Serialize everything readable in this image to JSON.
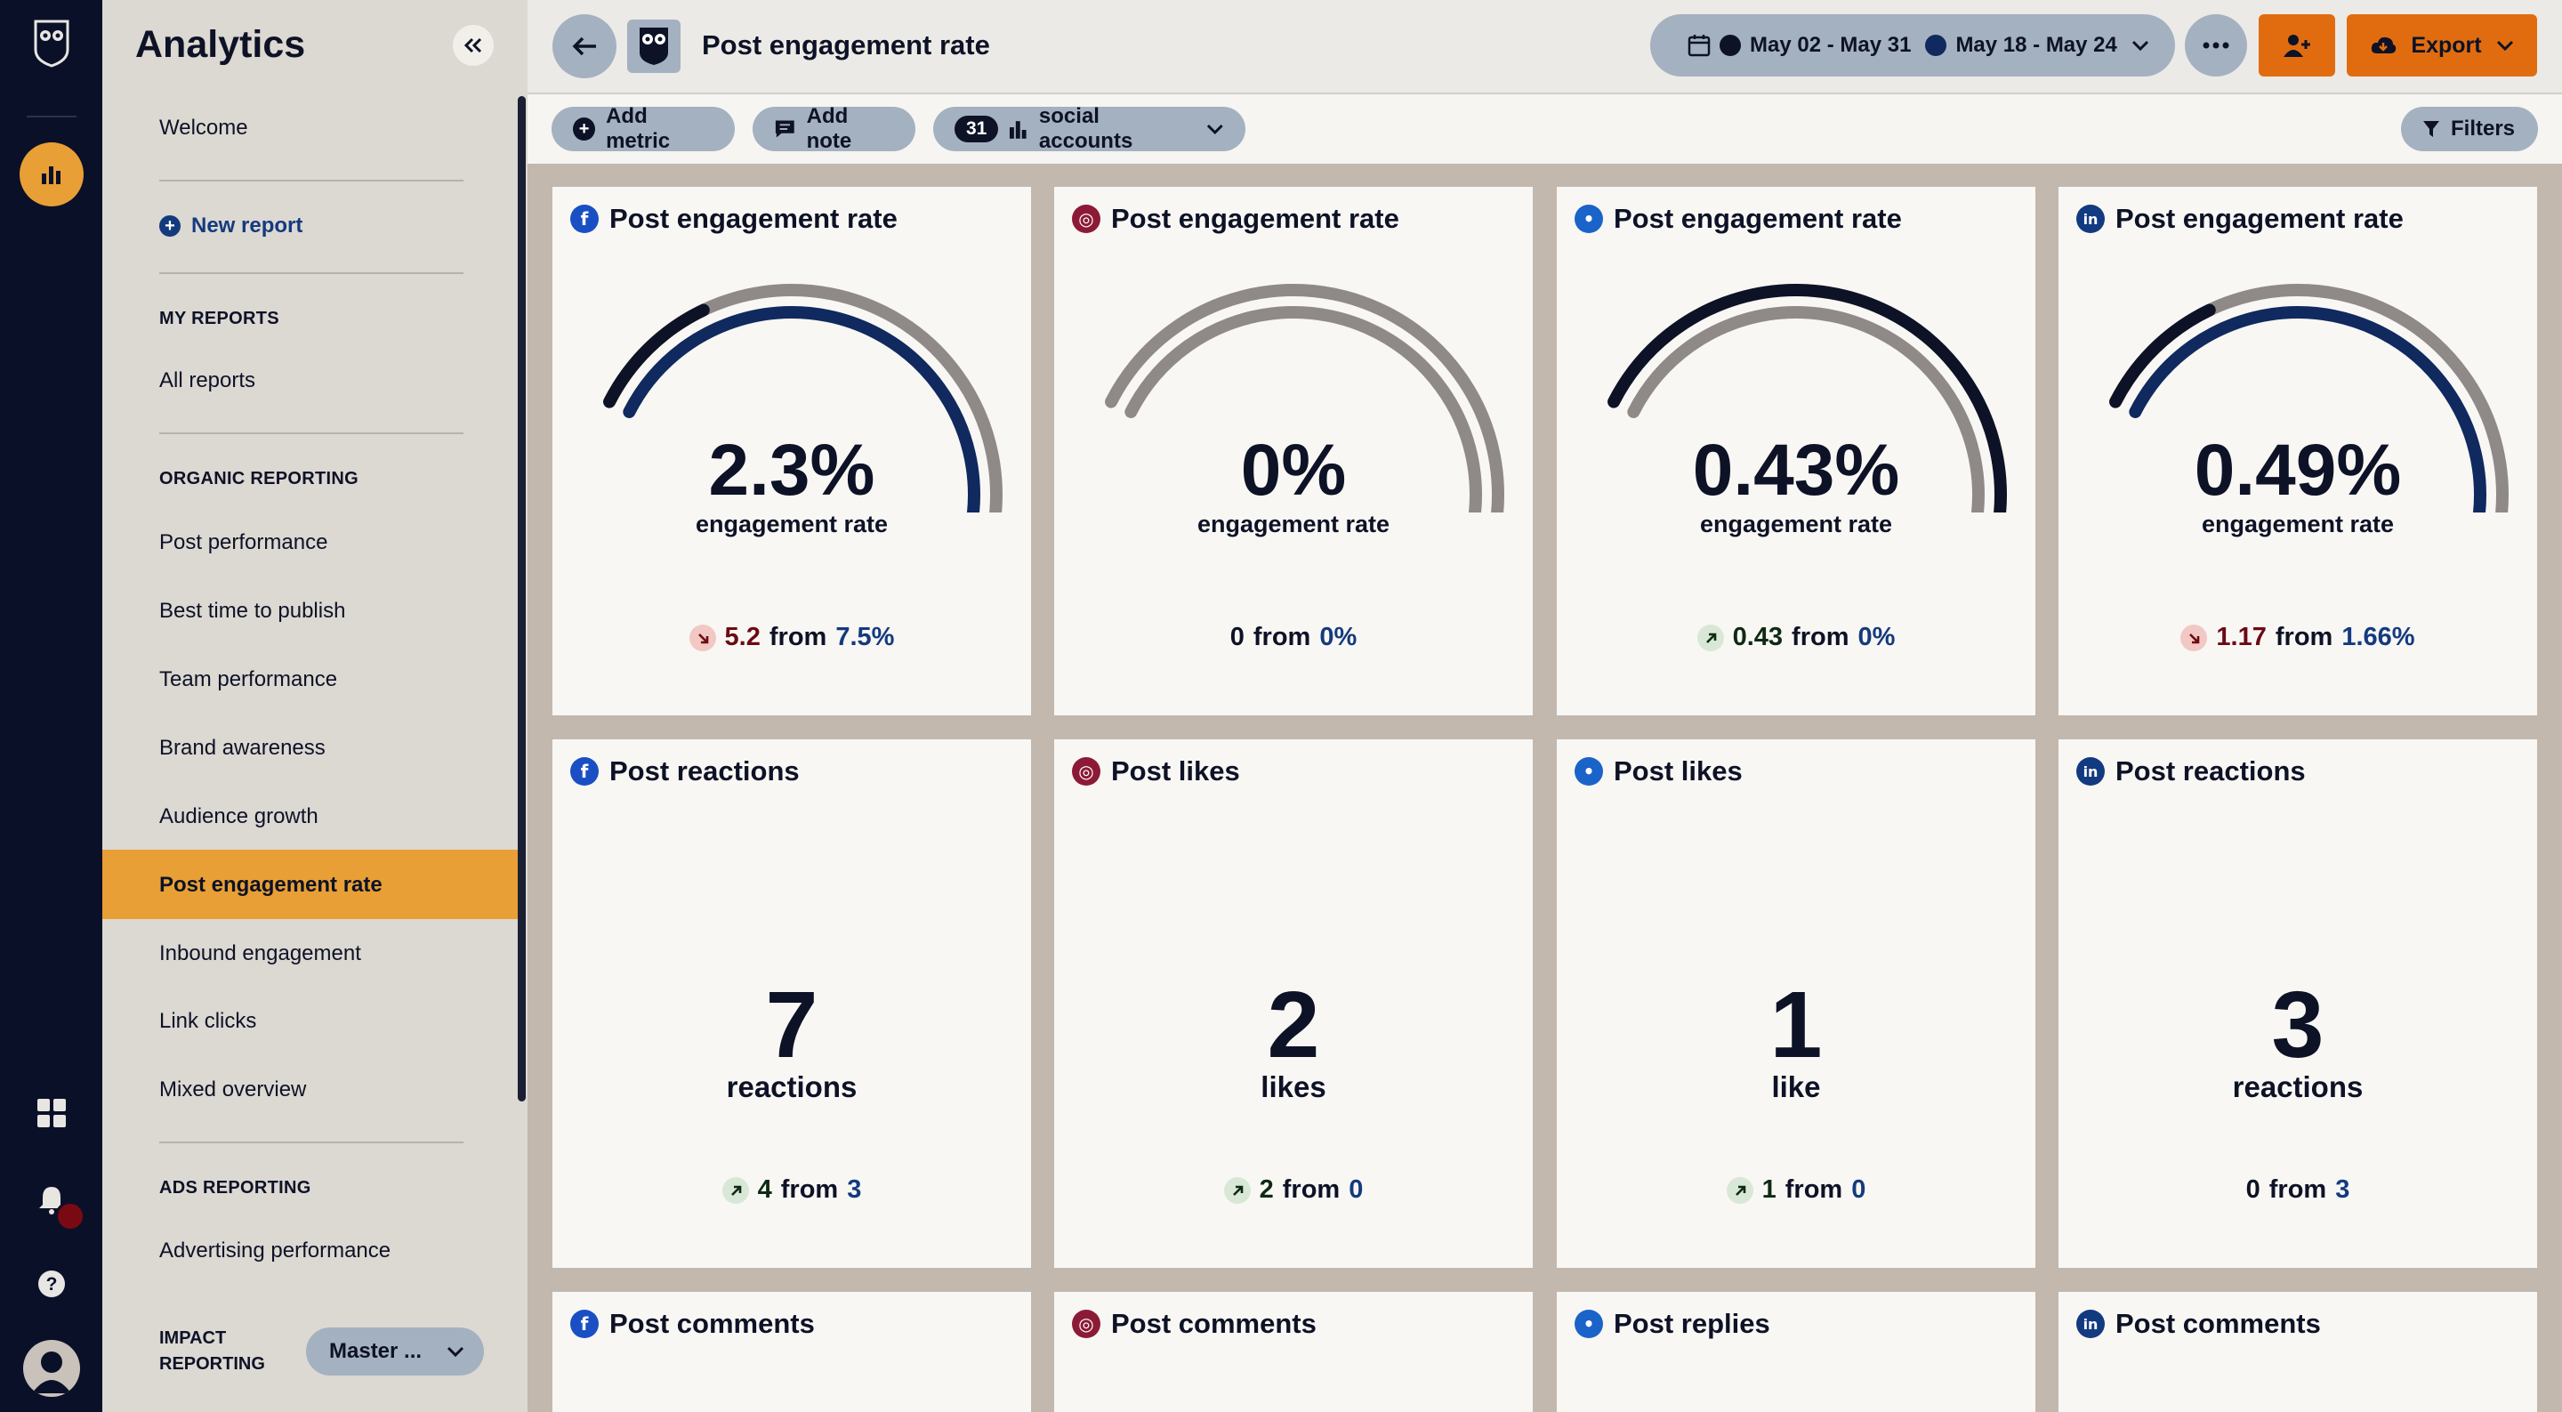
{
  "app": {
    "title": "Analytics"
  },
  "sidebar": {
    "welcome": "Welcome",
    "new_report": "New report",
    "my_reports_header": "MY REPORTS",
    "all_reports": "All reports",
    "organic_header": "ORGANIC REPORTING",
    "organic_items": [
      "Post performance",
      "Best time to publish",
      "Team performance",
      "Brand awareness",
      "Audience growth",
      "Post engagement rate",
      "Inbound engagement",
      "Link clicks",
      "Mixed overview"
    ],
    "active_item": "Post engagement rate",
    "ads_header": "ADS REPORTING",
    "ads_items": [
      "Advertising performance"
    ],
    "impact_header_line1": "IMPACT",
    "impact_header_line2": "REPORTING",
    "impact_select": "Master ..."
  },
  "header": {
    "page_title": "Post engagement rate",
    "date_range_1": "May 02 - May 31",
    "date_range_2": "May 18 - May 24",
    "export_label": "Export"
  },
  "toolbar": {
    "add_metric": "Add metric",
    "add_note": "Add note",
    "accounts_count": "31",
    "accounts_label": "social accounts",
    "filters": "Filters"
  },
  "colors": {
    "accent_orange": "#e16c10",
    "active_nav": "#e89f35",
    "rail_bg": "#0b1029",
    "current_period": "#0d1226",
    "comparison_period": "#10295e",
    "prior_arc": "#8f8a88"
  },
  "gauge_cards": [
    {
      "network": "facebook",
      "icon": "facebook-icon",
      "title": "Post engagement rate",
      "value": "2.3%",
      "label": "engagement rate",
      "trend": "down",
      "change": "5.2",
      "from_word": "from",
      "previous": "7.5%",
      "current_fraction": 1.0,
      "prior_fraction": 1.0
    },
    {
      "network": "instagram",
      "icon": "instagram-icon",
      "title": "Post engagement rate",
      "value": "0%",
      "label": "engagement rate",
      "trend": "none",
      "change": "0",
      "from_word": "from",
      "previous": "0%",
      "current_fraction": 1.0,
      "prior_fraction": 1.0
    },
    {
      "network": "twitter",
      "icon": "twitter-icon",
      "title": "Post engagement rate",
      "value": "0.43%",
      "label": "engagement rate",
      "trend": "up",
      "change": "0.43",
      "from_word": "from",
      "previous": "0%",
      "current_fraction": 1.0,
      "prior_fraction": 1.0
    },
    {
      "network": "linkedin",
      "icon": "linkedin-icon",
      "title": "Post engagement rate",
      "value": "0.49%",
      "label": "engagement rate",
      "trend": "down",
      "change": "1.17",
      "from_word": "from",
      "previous": "1.66%",
      "current_fraction": 1.0,
      "prior_fraction": 1.0
    }
  ],
  "count_cards": [
    {
      "network": "facebook",
      "icon": "facebook-icon",
      "title": "Post reactions",
      "value": "7",
      "label": "reactions",
      "trend": "up",
      "change": "4",
      "from_word": "from",
      "previous": "3"
    },
    {
      "network": "instagram",
      "icon": "instagram-icon",
      "title": "Post likes",
      "value": "2",
      "label": "likes",
      "trend": "up",
      "change": "2",
      "from_word": "from",
      "previous": "0"
    },
    {
      "network": "twitter",
      "icon": "twitter-icon",
      "title": "Post likes",
      "value": "1",
      "label": "like",
      "trend": "up",
      "change": "1",
      "from_word": "from",
      "previous": "0"
    },
    {
      "network": "linkedin",
      "icon": "linkedin-icon",
      "title": "Post reactions",
      "value": "3",
      "label": "reactions",
      "trend": "none",
      "change": "0",
      "from_word": "from",
      "previous": "3"
    }
  ],
  "bottom_cards": [
    {
      "network": "facebook",
      "icon": "facebook-icon",
      "title": "Post comments"
    },
    {
      "network": "instagram",
      "icon": "instagram-icon",
      "title": "Post comments"
    },
    {
      "network": "twitter",
      "icon": "twitter-icon",
      "title": "Post replies"
    },
    {
      "network": "linkedin",
      "icon": "linkedin-icon",
      "title": "Post comments"
    }
  ]
}
